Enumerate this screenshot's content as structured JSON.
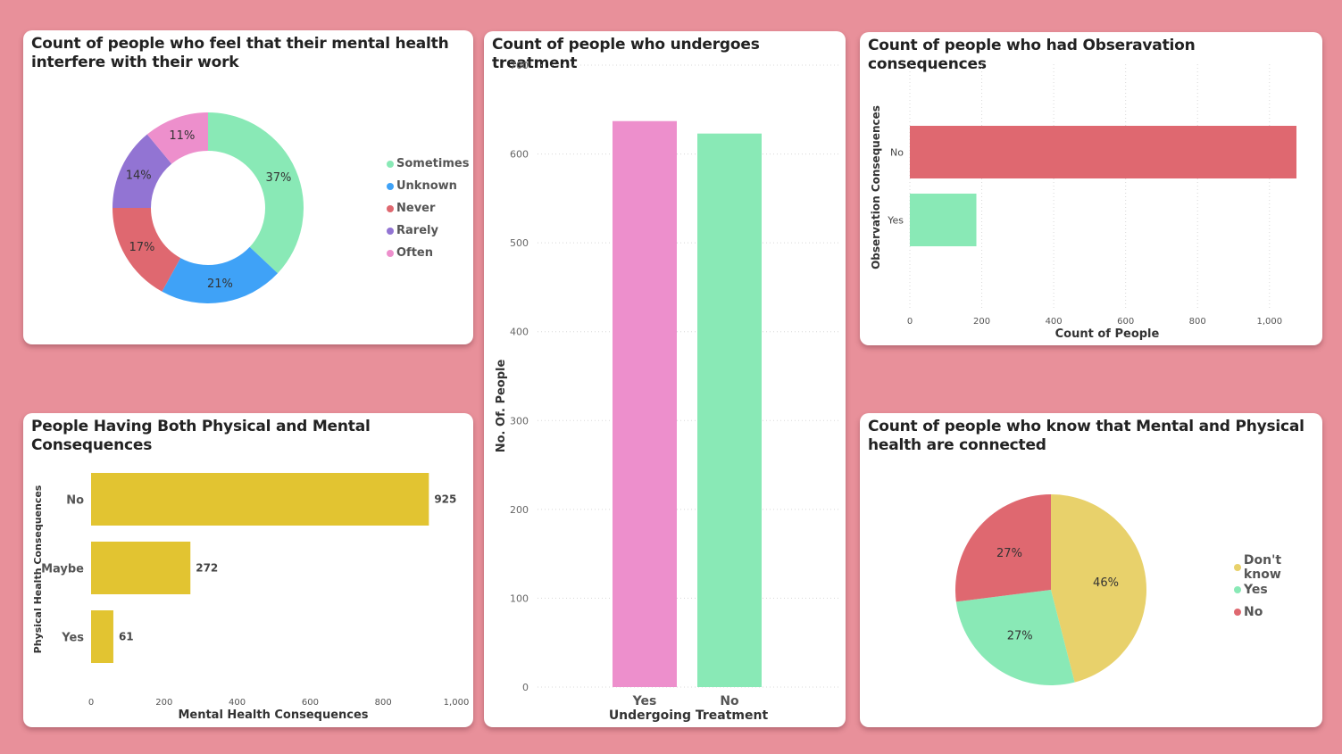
{
  "palette": {
    "background": "#e8909a",
    "green": "#89e9b6",
    "blue": "#3fa2f7",
    "red": "#df6870",
    "purple": "#9274d3",
    "pink": "#ed8fcc",
    "yellow": "#e2c431",
    "pie_yellow": "#e8d16b"
  },
  "chart_data": [
    {
      "id": "donut",
      "type": "pie",
      "title": "Count of people who feel that their mental health interfere with their work",
      "categories": [
        "Sometimes",
        "Unknown",
        "Never",
        "Rarely",
        "Often"
      ],
      "values": [
        37,
        21,
        17,
        14,
        11
      ],
      "labels": [
        "37%",
        "21%",
        "17%",
        "14%",
        "11%"
      ],
      "colors": [
        "#89e9b6",
        "#3fa2f7",
        "#df6870",
        "#9274d3",
        "#ed8fcc"
      ],
      "legend": "right"
    },
    {
      "id": "treatment",
      "type": "bar",
      "title": "Count of people who undergoes treatment",
      "categories": [
        "Yes",
        "No"
      ],
      "values": [
        637,
        623
      ],
      "colors": [
        "#ed8fcc",
        "#89e9b6"
      ],
      "xlabel": "Undergoing Treatment",
      "ylabel": "No. Of. People",
      "ylim": [
        0,
        700
      ],
      "yticks": [
        "0",
        "100",
        "200",
        "300",
        "400",
        "500",
        "600",
        "700"
      ],
      "grid": true
    },
    {
      "id": "observation",
      "type": "bar",
      "orientation": "horizontal",
      "title": "Count of people who had Obseravation consequences",
      "categories": [
        "No",
        "Yes"
      ],
      "values": [
        1075,
        185
      ],
      "colors": [
        "#df6870",
        "#89e9b6"
      ],
      "xlabel": "Count of People",
      "ylabel": "Observation Consequences",
      "xlim": [
        0,
        1075
      ],
      "xticks": [
        "0",
        "200",
        "400",
        "600",
        "800",
        "1,000"
      ],
      "grid": true
    },
    {
      "id": "physical",
      "type": "bar",
      "orientation": "horizontal",
      "title": "People Having Both Physical and Mental Consequences",
      "categories": [
        "No",
        "Maybe",
        "Yes"
      ],
      "values": [
        925,
        272,
        61
      ],
      "data_labels": [
        "925",
        "272",
        "61"
      ],
      "color": "#e2c431",
      "xlabel": "Mental Health Consequences",
      "ylabel": "Physical Health Consequences",
      "xlim": [
        0,
        1000
      ],
      "xticks": [
        "0",
        "200",
        "400",
        "600",
        "800",
        "1,000"
      ]
    },
    {
      "id": "connected",
      "type": "pie",
      "title": "Count of people who know that Mental and Physical health are connected",
      "categories": [
        "Don't know",
        "Yes",
        "No"
      ],
      "values": [
        46,
        27,
        27
      ],
      "labels": [
        "46%",
        "27%",
        "27%"
      ],
      "colors": [
        "#e8d16b",
        "#89e9b6",
        "#df6870"
      ],
      "legend": "right"
    }
  ]
}
